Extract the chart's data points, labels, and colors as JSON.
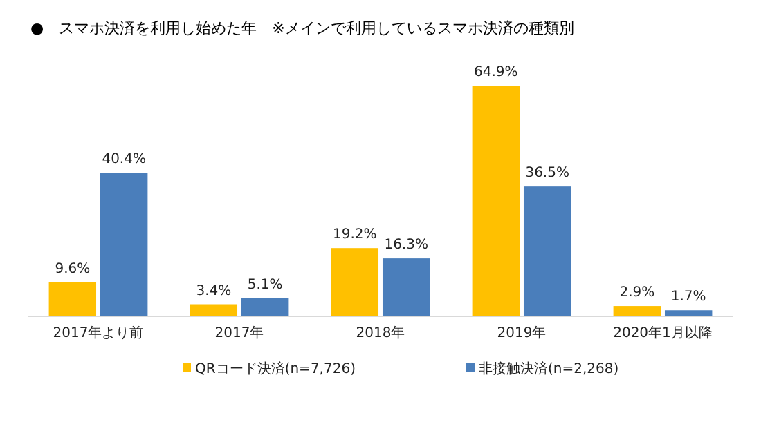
{
  "chart_data": {
    "type": "bar",
    "title": "●　スマホ決済を利用し始めた年　※メインで利用しているスマホ決済の種類別",
    "categories": [
      "2017年より前",
      "2017年",
      "2018年",
      "2019年",
      "2020年1月以降"
    ],
    "series": [
      {
        "name": "QRコード決済(n=7,726)",
        "color": "#ffc000",
        "values": [
          9.6,
          3.4,
          19.2,
          64.9,
          2.9
        ],
        "value_labels": [
          "9.6%",
          "3.4%",
          "19.2%",
          "64.9%",
          "2.9%"
        ]
      },
      {
        "name": "非接触決済(n=2,268)",
        "color": "#4a7ebb",
        "values": [
          40.4,
          5.1,
          16.3,
          36.5,
          1.7
        ],
        "value_labels": [
          "40.4%",
          "5.1%",
          "16.3%",
          "36.5%",
          "1.7%"
        ]
      }
    ],
    "legend": "bottom"
  }
}
